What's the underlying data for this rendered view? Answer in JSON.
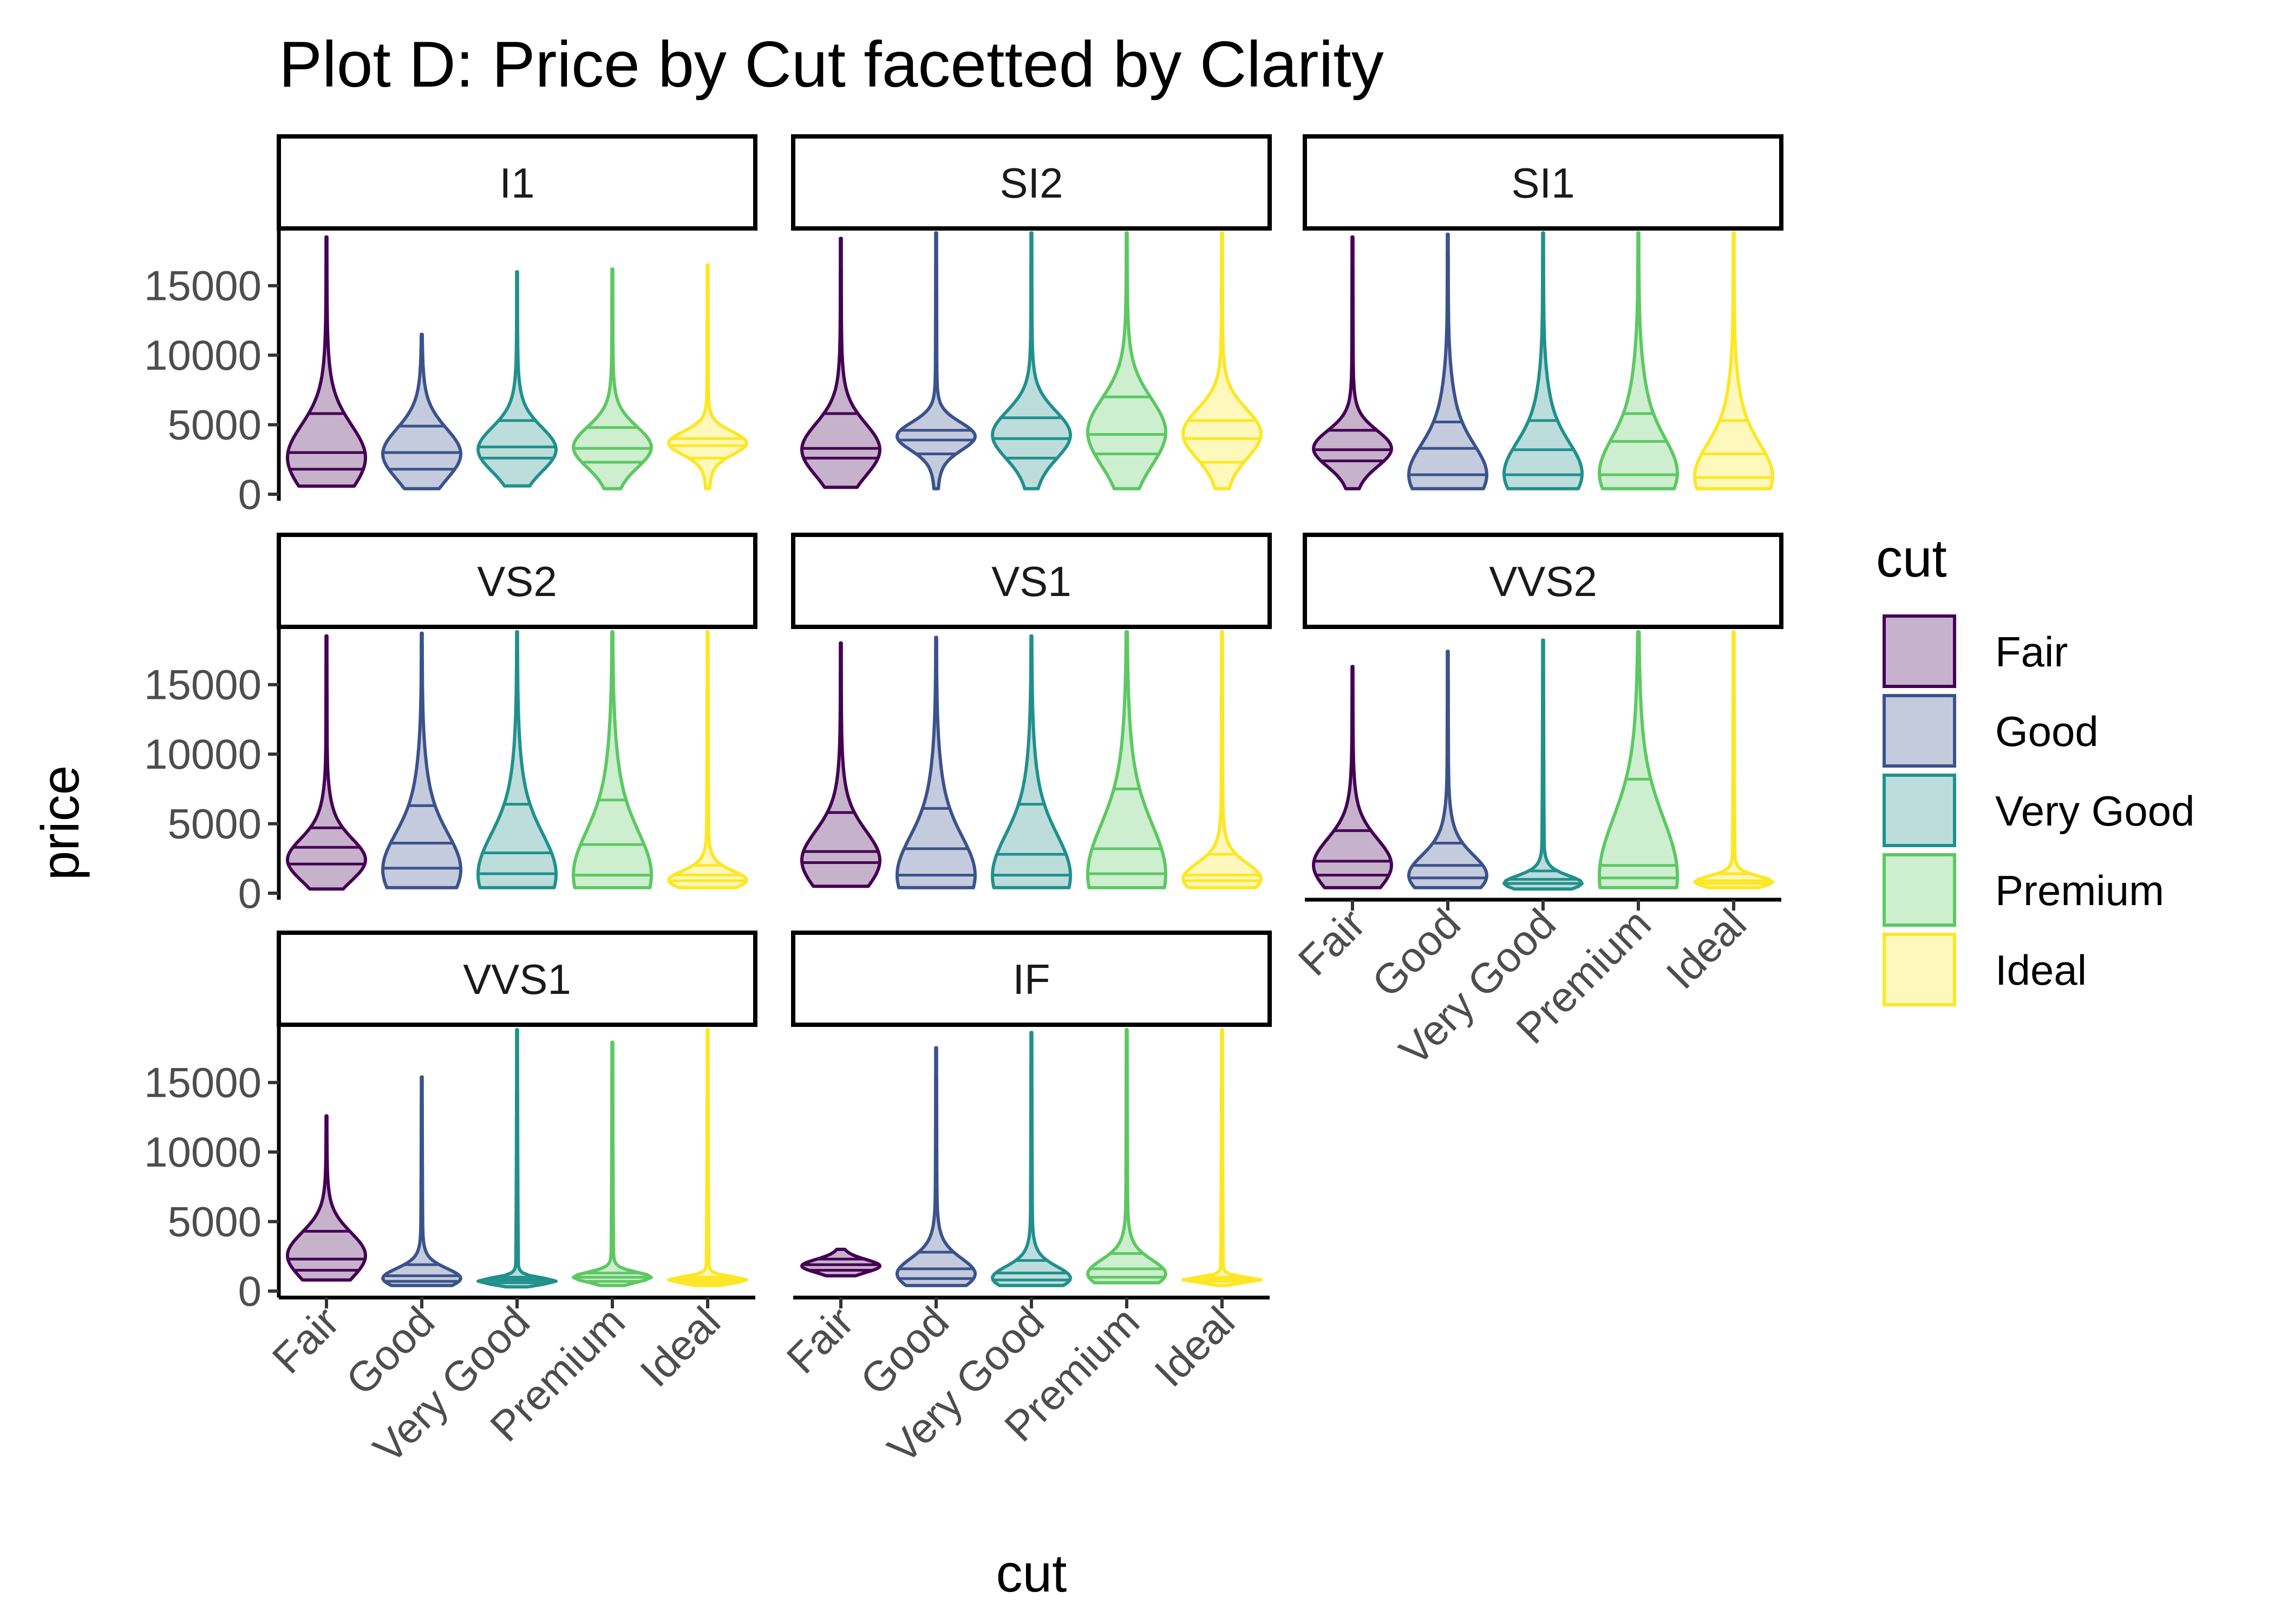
{
  "chart_data": {
    "type": "violin",
    "title": "Plot D: Price by Cut facetted by Clarity",
    "xlabel": "cut",
    "ylabel": "price",
    "ylim": [
      0,
      19000
    ],
    "yticks": [
      0,
      5000,
      10000,
      15000
    ],
    "categories": [
      "Fair",
      "Good",
      "Very Good",
      "Premium",
      "Ideal"
    ],
    "colors": {
      "Fair": "#440154",
      "Good": "#3B528B",
      "Very Good": "#21908C",
      "Premium": "#5DC863",
      "Ideal": "#FDE725"
    },
    "legend": {
      "title": "cut",
      "placement": "right",
      "entries": [
        "Fair",
        "Good",
        "Very Good",
        "Premium",
        "Ideal"
      ]
    },
    "quantiles_drawn": [
      0.25,
      0.5,
      0.75
    ],
    "facets": [
      {
        "clarity": "I1",
        "series": [
          {
            "cut": "Fair",
            "min": 584,
            "max": 18500,
            "q1": 1800,
            "median": 3000,
            "q3": 5800,
            "mode": 2600
          },
          {
            "cut": "Good",
            "min": 400,
            "max": 11500,
            "q1": 1800,
            "median": 3000,
            "q3": 4900,
            "mode": 2900
          },
          {
            "cut": "Very Good",
            "min": 600,
            "max": 16000,
            "q1": 2600,
            "median": 3400,
            "q3": 5300,
            "mode": 3200
          },
          {
            "cut": "Premium",
            "min": 400,
            "max": 16200,
            "q1": 2300,
            "median": 3300,
            "q3": 4800,
            "mode": 3400
          },
          {
            "cut": "Ideal",
            "min": 400,
            "max": 16500,
            "q1": 2600,
            "median": 3500,
            "q3": 4000,
            "mode": 3700
          }
        ]
      },
      {
        "clarity": "SI2",
        "series": [
          {
            "cut": "Fair",
            "min": 500,
            "max": 18400,
            "q1": 2600,
            "median": 3300,
            "q3": 5800,
            "mode": 3200
          },
          {
            "cut": "Good",
            "min": 400,
            "max": 18800,
            "q1": 2900,
            "median": 3900,
            "q3": 4600,
            "mode": 4200
          },
          {
            "cut": "Very Good",
            "min": 400,
            "max": 18800,
            "q1": 2600,
            "median": 4000,
            "q3": 5500,
            "mode": 4300
          },
          {
            "cut": "Premium",
            "min": 400,
            "max": 18800,
            "q1": 2900,
            "median": 4300,
            "q3": 7000,
            "mode": 4500
          },
          {
            "cut": "Ideal",
            "min": 400,
            "max": 18800,
            "q1": 2300,
            "median": 4000,
            "q3": 5300,
            "mode": 4400
          }
        ]
      },
      {
        "clarity": "SI1",
        "series": [
          {
            "cut": "Fair",
            "min": 400,
            "max": 18500,
            "q1": 2400,
            "median": 3200,
            "q3": 4600,
            "mode": 3300
          },
          {
            "cut": "Good",
            "min": 400,
            "max": 18700,
            "q1": 1400,
            "median": 3300,
            "q3": 5200,
            "mode": 1200
          },
          {
            "cut": "Very Good",
            "min": 400,
            "max": 18800,
            "q1": 1400,
            "median": 3200,
            "q3": 5300,
            "mode": 1300
          },
          {
            "cut": "Premium",
            "min": 400,
            "max": 18800,
            "q1": 1400,
            "median": 3800,
            "q3": 5800,
            "mode": 1300
          },
          {
            "cut": "Ideal",
            "min": 400,
            "max": 18800,
            "q1": 1200,
            "median": 2900,
            "q3": 5300,
            "mode": 1100
          }
        ]
      },
      {
        "clarity": "VS2",
        "series": [
          {
            "cut": "Fair",
            "min": 300,
            "max": 18500,
            "q1": 2100,
            "median": 3300,
            "q3": 4700,
            "mode": 2300
          },
          {
            "cut": "Good",
            "min": 400,
            "max": 18700,
            "q1": 1800,
            "median": 3600,
            "q3": 6300,
            "mode": 1500
          },
          {
            "cut": "Very Good",
            "min": 400,
            "max": 18800,
            "q1": 1400,
            "median": 2900,
            "q3": 6400,
            "mode": 1200
          },
          {
            "cut": "Premium",
            "min": 400,
            "max": 18800,
            "q1": 1300,
            "median": 3500,
            "q3": 6700,
            "mode": 1100
          },
          {
            "cut": "Ideal",
            "min": 400,
            "max": 18800,
            "q1": 900,
            "median": 1300,
            "q3": 2000,
            "mode": 900
          }
        ]
      },
      {
        "clarity": "VS1",
        "series": [
          {
            "cut": "Fair",
            "min": 500,
            "max": 18000,
            "q1": 2200,
            "median": 3000,
            "q3": 5800,
            "mode": 2300
          },
          {
            "cut": "Good",
            "min": 400,
            "max": 18400,
            "q1": 1300,
            "median": 3200,
            "q3": 6100,
            "mode": 1100
          },
          {
            "cut": "Very Good",
            "min": 400,
            "max": 18500,
            "q1": 1300,
            "median": 2800,
            "q3": 6400,
            "mode": 1100
          },
          {
            "cut": "Premium",
            "min": 400,
            "max": 18800,
            "q1": 1400,
            "median": 3200,
            "q3": 7500,
            "mode": 1200
          },
          {
            "cut": "Ideal",
            "min": 400,
            "max": 18800,
            "q1": 900,
            "median": 1300,
            "q3": 2800,
            "mode": 1000
          }
        ]
      },
      {
        "clarity": "VVS2",
        "series": [
          {
            "cut": "Fair",
            "min": 400,
            "max": 16300,
            "q1": 1300,
            "median": 2300,
            "q3": 4500,
            "mode": 2000
          },
          {
            "cut": "Good",
            "min": 400,
            "max": 17400,
            "q1": 1100,
            "median": 2000,
            "q3": 3600,
            "mode": 1200
          },
          {
            "cut": "Very Good",
            "min": 300,
            "max": 18200,
            "q1": 700,
            "median": 1000,
            "q3": 1600,
            "mode": 700
          },
          {
            "cut": "Premium",
            "min": 400,
            "max": 18800,
            "q1": 1100,
            "median": 2000,
            "q3": 8200,
            "mode": 1200
          },
          {
            "cut": "Ideal",
            "min": 400,
            "max": 18800,
            "q1": 700,
            "median": 900,
            "q3": 1400,
            "mode": 800
          }
        ]
      },
      {
        "clarity": "VVS1",
        "series": [
          {
            "cut": "Fair",
            "min": 800,
            "max": 12600,
            "q1": 1500,
            "median": 2300,
            "q3": 4300,
            "mode": 2600
          },
          {
            "cut": "Good",
            "min": 400,
            "max": 15400,
            "q1": 700,
            "median": 1100,
            "q3": 1900,
            "mode": 900
          },
          {
            "cut": "Very Good",
            "min": 300,
            "max": 18800,
            "q1": 600,
            "median": 800,
            "q3": 1000,
            "mode": 700
          },
          {
            "cut": "Premium",
            "min": 400,
            "max": 17900,
            "q1": 700,
            "median": 1000,
            "q3": 1300,
            "mode": 1000
          },
          {
            "cut": "Ideal",
            "min": 400,
            "max": 18800,
            "q1": 600,
            "median": 800,
            "q3": 1000,
            "mode": 800
          }
        ]
      },
      {
        "clarity": "IF",
        "series": [
          {
            "cut": "Fair",
            "min": 1100,
            "max": 3000,
            "q1": 1500,
            "median": 1900,
            "q3": 2300,
            "mode": 1800
          },
          {
            "cut": "Good",
            "min": 400,
            "max": 17500,
            "q1": 900,
            "median": 1600,
            "q3": 2800,
            "mode": 1200
          },
          {
            "cut": "Very Good",
            "min": 400,
            "max": 18600,
            "q1": 800,
            "median": 1300,
            "q3": 2200,
            "mode": 900
          },
          {
            "cut": "Premium",
            "min": 600,
            "max": 18800,
            "q1": 1000,
            "median": 1600,
            "q3": 2700,
            "mode": 1200
          },
          {
            "cut": "Ideal",
            "min": 400,
            "max": 18800,
            "q1": 700,
            "median": 900,
            "q3": 1000,
            "mode": 800
          }
        ]
      }
    ]
  }
}
